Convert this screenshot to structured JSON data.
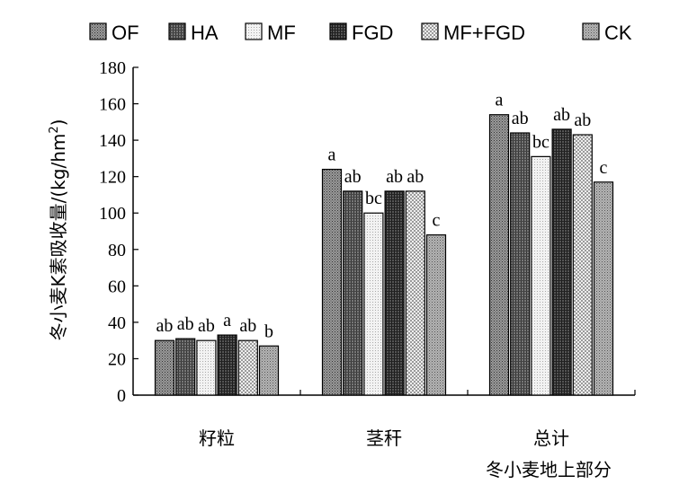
{
  "chart_data": {
    "type": "bar",
    "categories": [
      "籽粒",
      "茎秆",
      "总计"
    ],
    "xlabel": "冬小麦地上部分",
    "ylabel_main": "冬小麦K素吸收量/(kg/hm",
    "ylabel_sup": "2",
    "ylabel_close": ")",
    "ylim": [
      0,
      180
    ],
    "yticks": [
      0,
      20,
      40,
      60,
      80,
      100,
      120,
      140,
      160,
      180
    ],
    "legend_position": "top",
    "grid": false,
    "series": [
      {
        "name": "OF",
        "values": [
          30,
          124,
          154
        ],
        "labels": [
          "ab",
          "a",
          "a"
        ],
        "color": "#8c8c8c",
        "pattern": "dark-dots"
      },
      {
        "name": "HA",
        "values": [
          31,
          112,
          144
        ],
        "labels": [
          "ab",
          "ab",
          "ab"
        ],
        "color": "#6e6e6e",
        "pattern": "dark-hatch"
      },
      {
        "name": "MF",
        "values": [
          30,
          100,
          131
        ],
        "labels": [
          "ab",
          "bc",
          "bc"
        ],
        "color": "#e0e0e0",
        "pattern": "light-dots"
      },
      {
        "name": "FGD",
        "values": [
          33,
          112,
          146
        ],
        "labels": [
          "a",
          "ab",
          "ab"
        ],
        "color": "#3c3c3c",
        "pattern": "dark-grid"
      },
      {
        "name": "MF+FGD",
        "values": [
          30,
          112,
          143
        ],
        "labels": [
          "ab",
          "ab",
          "ab"
        ],
        "color": "#d0d0d0",
        "pattern": "light-checker"
      },
      {
        "name": "CK",
        "values": [
          27,
          88,
          117
        ],
        "labels": [
          "b",
          "c",
          "c"
        ],
        "color": "#a8a8a8",
        "pattern": "mid-dots"
      }
    ]
  }
}
